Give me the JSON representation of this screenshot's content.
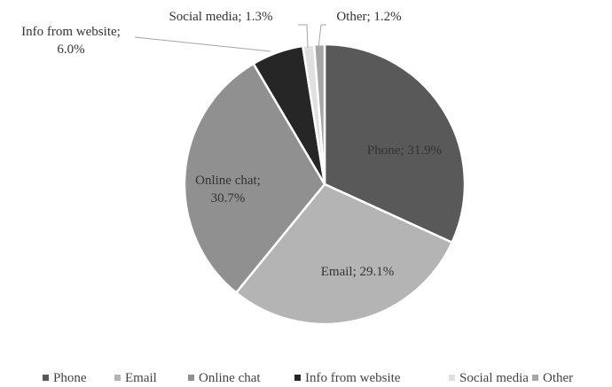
{
  "chart_data": {
    "type": "pie",
    "title": "",
    "legend_position": "bottom",
    "slices": [
      {
        "name": "Phone",
        "value": 31.9,
        "label": "Phone; 31.9%",
        "label_lines": [
          "Phone; 31.9%"
        ],
        "color": "#595959"
      },
      {
        "name": "Email",
        "value": 29.1,
        "label": "Email; 29.1%",
        "label_lines": [
          "Email; 29.1%"
        ],
        "color": "#b4b4b4"
      },
      {
        "name": "Online chat",
        "value": 30.7,
        "label": "Online chat; 30.7%",
        "label_lines": [
          "Online chat;",
          "30.7%"
        ],
        "color": "#909090"
      },
      {
        "name": "Info from website",
        "value": 6.0,
        "label": "Info from website; 6.0%",
        "label_lines": [
          "Info from website;",
          "6.0%"
        ],
        "color": "#262626"
      },
      {
        "name": "Social media",
        "value": 1.3,
        "label": "Social media; 1.3%",
        "label_lines": [
          "Social media; 1.3%"
        ],
        "color": "#e0e0e0"
      },
      {
        "name": "Other",
        "value": 1.2,
        "label": "Other; 1.2%",
        "label_lines": [
          "Other; 1.2%"
        ],
        "color": "#a6a6a6"
      }
    ]
  }
}
